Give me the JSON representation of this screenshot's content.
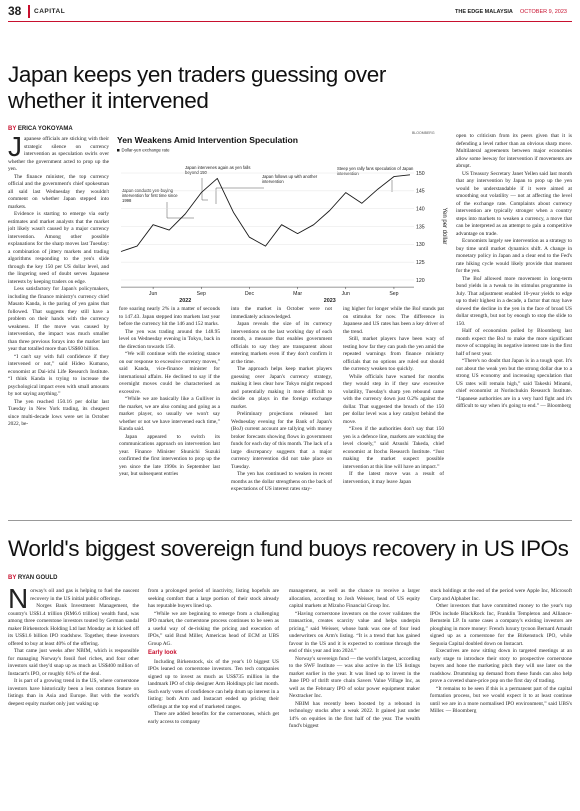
{
  "header": {
    "page": "38",
    "section": "CAPITAL",
    "brand": "THE EDGE MALAYSIA",
    "date": "OCTOBER 9, 2023"
  },
  "article1": {
    "headline": "Japan keeps yen traders guessing over whether it intervened",
    "byline_by": "BY",
    "byline_name": "ERICA YOKOYAMA",
    "columns": [
      [
        "Japanese officials are sticking with their strategic silence on currency intervention as speculation swirls over whether the government acted to prop up the yen.",
        "The finance minister, the top currency official and the government's chief spokesman all said last Wednesday they wouldn't comment on whether Japan stepped into markets.",
        "Evidence is starting to emerge via early estimates and market analysts that the market jolt likely wasn't caused by a major currency intervention. Among other possible explanations for the sharp moves last Tuesday: a combination of jittery markets and trading algorithms responding to the yen's slide through the key 150 per US dollar level, and the lingering seed of doubt serves Japanese interests by keeping traders on edge.",
        "Less satisfactory for Japan's policymakers, including the finance ministry's currency chief Masato Kanda, is the paring of yen gains that followed. That suggests they still have a problem on their hands with the currency weakness. If the move was caused by intervention, the impact was much smaller than three previous forays into the market last year that totalled more than US$60 billion.",
        "“I can't say with full confidence if they intervened or not,” said Hideo Kumano, economist at Dai-ichi Life Research Institute. “I think Kanda is trying to increase the psychological impact even with small amounts by not saying anything.”",
        "The yen reached 150.16 per dollar last Tuesday in New York trading, its cheapest since multi-decade lows were set in October 2022, be-"
      ],
      [
        "fore soaring nearly 2% in a matter of seconds to 147.43. Japan stepped into markets last year before the currency hit the 146 and 152 marks.",
        "The yen was trading around the 148.95 level on Wednesday evening in Tokyo, back in the direction towards 150.",
        "“We will continue with the existing stance on our response to excessive currency moves,” said Kanda, vice-finance minister for international affairs. He declined to say if the overnight moves could be characterised as excessive.",
        "“While we are basically like a Gulliver in the market, we are also coming and going as a market player, so usually we won't say whether or not we have intervened each time,” Kanda said.",
        "Japan appeared to switch its communications approach on intervention last year. Finance Minister Shunichi Suzuki confirmed the first intervention to prop up the yen since the late 1990s in September last year, but subsequent entries"
      ],
      [
        "into the market in October were not immediately acknowledged.",
        "Japan reveals the size of its currency interventions on the last working day of each month, a measure that enables government officials to say they are transparent about entering markets even if they don't confirm it at the time.",
        "The approach helps keep market players guessing over Japan's currency strategy, making it less clear how Tokyo might respond and potentially making it more difficult to decide on plays in the foreign exchange market.",
        "Preliminary projections released last Wednesday evening for the Bank of Japan's (BoJ) current account are tallying with money broker forecasts showing flows in government funds for each day of this month. The lack of a large discrepancy suggests that a major currency intervention did not take place on Tuesday.",
        "The yen has continued to weaken in recent months as the dollar strengthens on the back of expectations of US interest rates stay-"
      ],
      [
        "ing higher for longer while the BoJ stands pat on stimulus for now. The difference in Japanese and US rates has been a key driver of the trend.",
        "Still, market players have been wary of testing how far they can push the yen amid the repeated warnings from finance ministry officials that no options are ruled out should the currency weaken too quickly.",
        "While officials have warned for months they would step in if they saw excessive volatility, Tuesday's sharp yen rebound came with the currency down just 0.2% against the dollar. That suggested the breach of the 150 per dollar level was a key catalyst behind the move.",
        "“Even if the authorities don't say that 150 yen is a defence line, markets are watching the level closely,” said Atsushi Takeda, chief economist at Itochu Research Institute. “Just making the market suspect possible intervention at this line will have an impact.”",
        "If the latest move was a result of intervention, it may leave Japan"
      ],
      [
        "open to criticism from its peers given that it is defending a level rather than an obvious sharp move. Multilateral agreements between major economies allow some leeway for intervention if movements are abrupt.",
        "US Treasury Secretary Janet Yellen said last month that any intervention by Japan to prop up the yen would be understandable if it were aimed at smoothing out volatility — not at affecting the level of the exchange rate. Complaints about currency intervention are typically stronger when a country steps into markets to weaken a currency, a move that can be interpreted as an attempt to gain a competitive advantage on trade.",
        "Economists largely see intervention as a strategy to buy time until market dynamics shift. A change in monetary policy in Japan and a clear end to the Fed's rate hiking cycle would likely provide that moment for the yen.",
        "The BoJ allowed more movement in long-term bond yields in a tweak to its stimulus programme in July. That adjustment enabled 10-year yields to edge up to their highest in a decade, a factor that may have slowed the decline in the yen in the face of broad US dollar strength, but not by enough to stop the slide to 150.",
        "Half of economists polled by Bloomberg last month expect the BoJ to make the more significant move of scrapping its negative interest rate in the first half of next year.",
        "“There's no doubt that Japan is in a tough spot. It's not about the weak yen but the strong dollar due to a strong US economy and increasing speculation that US rates will remain high,” said Takeshi Minami, chief economist at Norinchukin Research Institute. “Japanese authorities are in a very hard fight and it's difficult to say when it's going to end.” — Bloomberg"
      ]
    ]
  },
  "chart_data": {
    "type": "line",
    "title": "Yen Weakens Amid Intervention Speculation",
    "source": "BLOOMBERG",
    "y_label": "Yen per dollar",
    "x": [
      "2022-04",
      "2022-05",
      "2022-06",
      "2022-07",
      "2022-08",
      "2022-09",
      "2022-10",
      "2022-11",
      "2022-12",
      "2023-01",
      "2023-02",
      "2023-03",
      "2023-04",
      "2023-05",
      "2023-06",
      "2023-07",
      "2023-08",
      "2023-09",
      "2023-10"
    ],
    "series": [
      {
        "name": "Dollar-yen exchange rate",
        "color": "#1a1a1a",
        "values": [
          128,
          129.5,
          135.5,
          134,
          138.5,
          144.5,
          148.5,
          139,
          132,
          129.5,
          135.5,
          133,
          135.5,
          139.5,
          144.5,
          141.5,
          145.5,
          149,
          149.5
        ]
      }
    ],
    "ylim": [
      118,
      152
    ],
    "yticks": [
      120,
      125,
      130,
      135,
      140,
      145,
      150
    ],
    "xticks": [
      {
        "value": "2022-06",
        "label": "Jun"
      },
      {
        "value": "2022-09",
        "label": "Sep"
      },
      {
        "value": "2022-12",
        "label": "Dec"
      },
      {
        "value": "2023-03",
        "label": "Mar"
      },
      {
        "value": "2023-06",
        "label": "Jun"
      },
      {
        "value": "2023-09",
        "label": "Sep"
      }
    ],
    "xticks_years": [
      {
        "value": "2022-08",
        "label": "2022"
      },
      {
        "value": "2023-05",
        "label": "2023"
      }
    ],
    "annotations": [
      "Japan conducts yen-buying intervention for first time since 1998",
      "Japan intervenes again as yen falls beyond 150",
      "Japan follows up with another intervention",
      "Steep yen rally fans speculation of Japan intervention"
    ]
  },
  "article2": {
    "headline": "World's biggest sovereign fund buoys recovery in US IPOs",
    "byline_by": "BY",
    "byline_name": "RYAN GOULD",
    "columns": [
      [
        "Norway's oil and gas is helping to fuel the nascent recovery in the US initial public offerings.",
        "Norges Bank Investment Management, the country's US$1.4 trillion (RM6.6 trillion) wealth fund, was among three cornerstone investors touted by German sandal maker Birkenstock Holding Ltd last Monday as it kicked off its US$1.6 billion IPO roadshow. Together, these investors offered to buy at least 40% of the offering.",
        "That came just weeks after NBIM, which is responsible for managing Norway's fossil fuel riches, and four other investors said they'd snap up as much as US$400 million of Instacart's IPO, or roughly 61% of the deal.",
        "It is part of a growing trend in the US, where cornerstone investors have historically been a less common feature on listings than in Asia and Europe. But with the world's deepest equity market only just waking up"
      ],
      [
        "from a prolonged period of inactivity, listing hopefuls are seeking comfort that a large portion of their stock already has reputable buyers lined up.",
        "“While we are beginning to emerge from a challenging IPO market, the cornerstone process continues to be seen as a useful way of de-risking the pricing and execution of IPOs,” said Brad Miller, Americas head of ECM at UBS Group AG.",
        {
          "subhead": "Early look"
        },
        "Including Birkenstock, six of the year's 10 biggest US IPOs leaned on cornerstone investors. Ten tech companies signed up to invest as much as US$735 million in the landmark IPO of chip designer Arm Holdings plc last month. Such early votes of confidence can help drum up interest in a listing: both Arm and Instacart ended up pricing their offerings at the top end of marketed ranges.",
        "There are added benefits for the cornerstones, which get early access to company"
      ],
      [
        "management, as well as the chance to receive a larger allocation, according to Josh Weisser, head of US equity capital markets at Mizuho Financial Group Inc.",
        "“Having cornerstone investors on the cover validates the transaction, creates scarcity value and helps underpin pricing,” said Weisser, whose bank was one of four lead underwriters on Arm's listing. “It is a trend that has gained favour in the US and it is expected to continue through the end of this year and into 2024.”",
        "Norway's sovereign fund — the world's largest, according to the SWF Institute — was also active in the US listings market earlier in the year. It was lined up to invest in the June IPO of thrift store chain Savers Value Village Inc, as well as the February IPO of solar power equipment maker Nextracker Inc.",
        "NBIM has recently been boosted by a rebound in technology stocks after a weak 2022. It gained just under 14% on equities in the first half of the year. The wealth fund's biggest"
      ],
      [
        "stock holdings at the end of the period were Apple Inc, Microsoft Corp and Alphabet Inc.",
        "Other investors that have committed money to the year's top IPOs include BlackRock Inc, Franklin Templeton and Alliance-Bernstein LP. In some cases a company's existing investors are ploughing in more money: French luxury tycoon Bernard Arnault signed up as a cornerstone for the Birkenstock IPO, while Sequoia Capital doubled down on Instacart.",
        "Executives are now sitting down in targeted meetings at an early stage to introduce their story to prospective cornerstone buyers and hone the marketing pitch they will use later on the roadshow. Drumming up demand from these funds can also help prove a coveted share-price pop on the first day of trading.",
        "“It remains to be seen if this is a permanent part of the capital formation process, but we would expect it to at least continue until we are in a more normalised IPO environment,” said UBS's Miller. — Bloomberg"
      ]
    ]
  }
}
